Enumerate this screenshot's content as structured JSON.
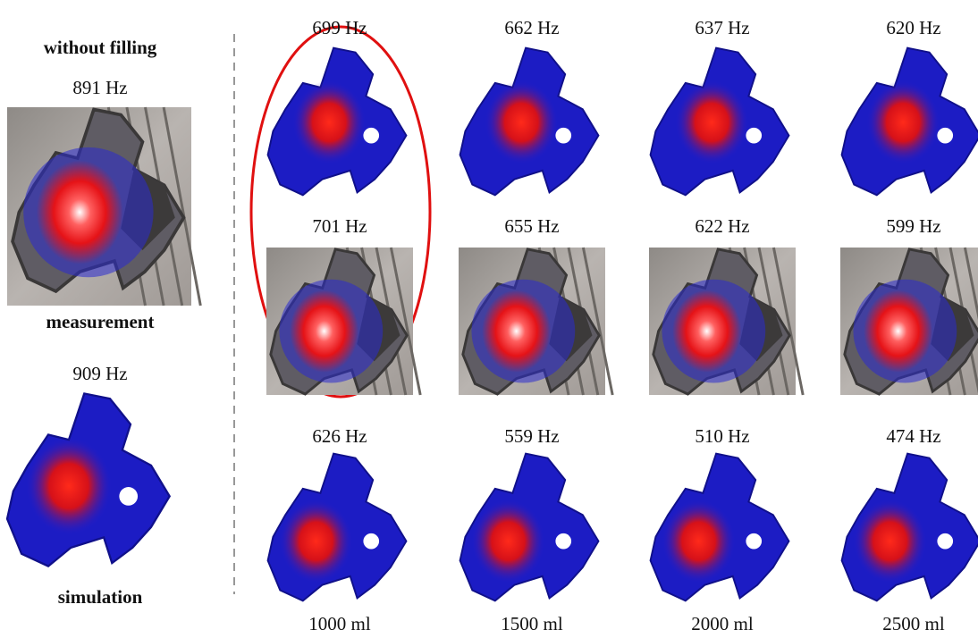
{
  "left": {
    "title": "without filling",
    "measurement_freq": "891 Hz",
    "measurement_label": "measurement",
    "simulation_freq": "909 Hz",
    "simulation_label": "simulation"
  },
  "columns": [
    {
      "top_freq": "699 Hz",
      "measurement_freq": "701 Hz",
      "simulation_freq": "626 Hz",
      "volume": "1000 ml"
    },
    {
      "top_freq": "662 Hz",
      "measurement_freq": "655 Hz",
      "simulation_freq": "559 Hz",
      "volume": "1500 ml"
    },
    {
      "top_freq": "637 Hz",
      "measurement_freq": "622 Hz",
      "simulation_freq": "510 Hz",
      "volume": "2000 ml"
    },
    {
      "top_freq": "620 Hz",
      "measurement_freq": "599 Hz",
      "simulation_freq": "474 Hz",
      "volume": "2500 ml"
    }
  ]
}
